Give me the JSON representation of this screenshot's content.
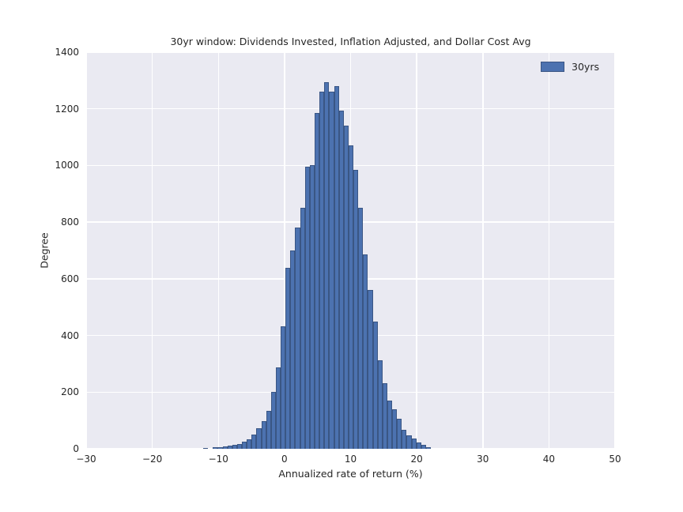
{
  "figure": {
    "title": "30yr window: Dividends Invested, Inflation Adjusted, and Dollar Cost Avg",
    "xlabel": "Annualized rate of return (%)",
    "ylabel": "Degree",
    "legend_label": "30yrs"
  },
  "chart_data": {
    "type": "bar",
    "subtype": "histogram",
    "title": "30yr window: Dividends Invested, Inflation Adjusted, and Dollar Cost Avg",
    "xlabel": "Annualized rate of return (%)",
    "ylabel": "Degree",
    "legend": [
      "30yrs"
    ],
    "legend_position": "upper right",
    "grid": true,
    "xlim": [
      -30,
      50
    ],
    "ylim": [
      0,
      1400
    ],
    "xtick_values": [
      -30,
      -20,
      -10,
      0,
      10,
      20,
      30,
      40,
      50
    ],
    "xtick_labels": [
      "−30",
      "−20",
      "−10",
      "0",
      "10",
      "20",
      "30",
      "40",
      "50"
    ],
    "ytick_values": [
      0,
      200,
      400,
      600,
      800,
      1000,
      1200,
      1400
    ],
    "bins": {
      "start": -12.3,
      "width": 0.733
    },
    "counts": [
      4,
      0,
      5,
      6,
      8,
      11,
      14,
      18,
      24,
      33,
      50,
      73,
      98,
      135,
      200,
      288,
      432,
      640,
      700,
      780,
      850,
      995,
      1000,
      1185,
      1260,
      1295,
      1260,
      1280,
      1195,
      1140,
      1070,
      985,
      850,
      685,
      560,
      450,
      312,
      232,
      170,
      140,
      105,
      66,
      47,
      36,
      22,
      13,
      5
    ]
  },
  "style": {
    "bar_fill": "#4C72B0",
    "bar_edge": "#3A5684",
    "plot_bg": "#EAEAF2",
    "grid_color": "#FFFFFF",
    "figure_bg": "#FFFFFF",
    "text_color": "#262626"
  }
}
